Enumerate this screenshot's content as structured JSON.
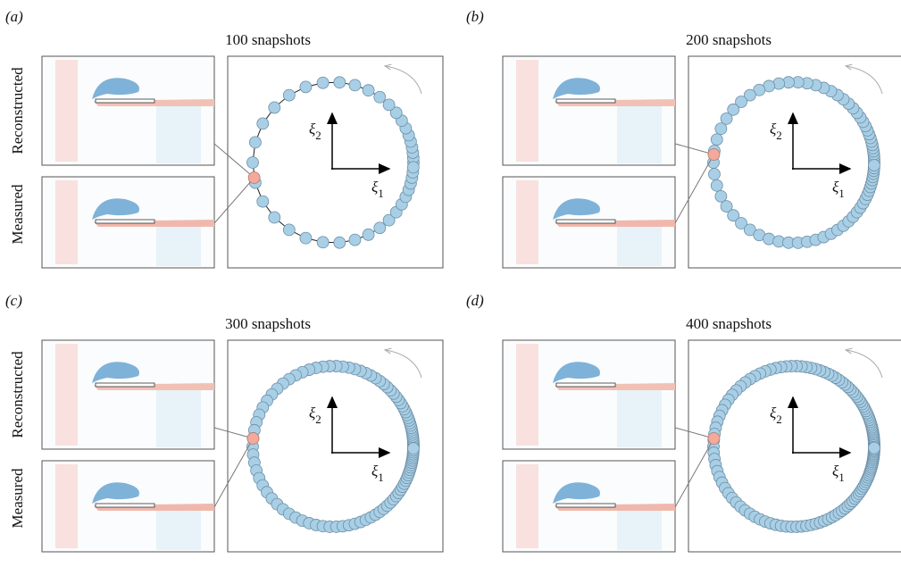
{
  "panels": [
    {
      "label": "(a)",
      "title": "100 snapshots",
      "row_labels": [
        "Reconstructed",
        "Measured"
      ],
      "axes": [
        {
          "symbol": "ξ",
          "subscript": "1"
        },
        {
          "symbol": "ξ",
          "subscript": "2"
        }
      ]
    },
    {
      "label": "(b)",
      "title": "200 snapshots",
      "axes": [
        {
          "symbol": "ξ",
          "subscript": "1"
        },
        {
          "symbol": "ξ",
          "subscript": "2"
        }
      ]
    },
    {
      "label": "(c)",
      "title": "300 snapshots",
      "row_labels": [
        "Reconstructed",
        "Measured"
      ],
      "axes": [
        {
          "symbol": "ξ",
          "subscript": "1"
        },
        {
          "symbol": "ξ",
          "subscript": "2"
        }
      ]
    },
    {
      "label": "(d)",
      "title": "400 snapshots",
      "axes": [
        {
          "symbol": "ξ",
          "subscript": "1"
        },
        {
          "symbol": "ξ",
          "subscript": "2"
        }
      ]
    }
  ]
}
